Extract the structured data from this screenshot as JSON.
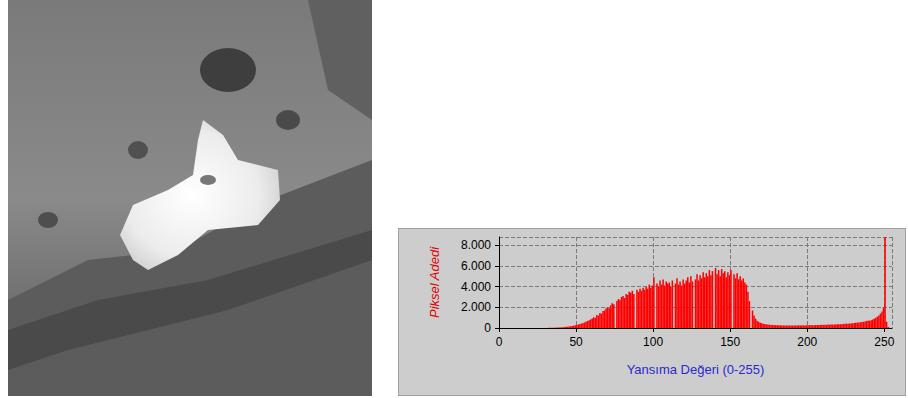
{
  "chart_data": {
    "type": "histogram",
    "xlabel": "Yansıma Değeri (0-255)",
    "ylabel": "Piksel Adedi",
    "color": "#ff0000",
    "bins": [
      0,
      1,
      2,
      3,
      4,
      5,
      6,
      7,
      8,
      9,
      10,
      11,
      12,
      13,
      14,
      15,
      16,
      17,
      18,
      19,
      20,
      21,
      22,
      23,
      24,
      25,
      26,
      27,
      28,
      29,
      30,
      31,
      32,
      33,
      34,
      35,
      36,
      37,
      38,
      39,
      40,
      41,
      42,
      43,
      44,
      45,
      46,
      47,
      48,
      49,
      50,
      51,
      52,
      53,
      54,
      55,
      56,
      57,
      58,
      59,
      60,
      61,
      62,
      63,
      64,
      65,
      66,
      67,
      68,
      69,
      70,
      71,
      72,
      73,
      74,
      75,
      76,
      77,
      78,
      79,
      80,
      81,
      82,
      83,
      84,
      85,
      86,
      87,
      88,
      89,
      90,
      91,
      92,
      93,
      94,
      95,
      96,
      97,
      98,
      99,
      100,
      101,
      102,
      103,
      104,
      105,
      106,
      107,
      108,
      109,
      110,
      111,
      112,
      113,
      114,
      115,
      116,
      117,
      118,
      119,
      120,
      121,
      122,
      123,
      124,
      125,
      126,
      127,
      128,
      129,
      130,
      131,
      132,
      133,
      134,
      135,
      136,
      137,
      138,
      139,
      140,
      141,
      142,
      143,
      144,
      145,
      146,
      147,
      148,
      149,
      150,
      151,
      152,
      153,
      154,
      155,
      156,
      157,
      158,
      159,
      160,
      161,
      162,
      163,
      164,
      165,
      166,
      167,
      168,
      169,
      170,
      171,
      172,
      173,
      174,
      175,
      176,
      177,
      178,
      179,
      180,
      181,
      182,
      183,
      184,
      185,
      186,
      187,
      188,
      189,
      190,
      191,
      192,
      193,
      194,
      195,
      196,
      197,
      198,
      199,
      200,
      201,
      202,
      203,
      204,
      205,
      206,
      207,
      208,
      209,
      210,
      211,
      212,
      213,
      214,
      215,
      216,
      217,
      218,
      219,
      220,
      221,
      222,
      223,
      224,
      225,
      226,
      227,
      228,
      229,
      230,
      231,
      232,
      233,
      234,
      235,
      236,
      237,
      238,
      239,
      240,
      241,
      242,
      243,
      244,
      245,
      246,
      247,
      248,
      249,
      250,
      251,
      252,
      253,
      254,
      255,
      256
    ],
    "values": [
      0,
      0,
      0,
      0,
      0,
      0,
      0,
      0,
      0,
      0,
      0,
      0,
      0,
      0,
      0,
      0,
      0,
      0,
      0,
      0,
      0,
      0,
      0,
      0,
      0,
      0,
      0,
      0,
      5,
      5,
      10,
      10,
      15,
      20,
      20,
      30,
      30,
      40,
      50,
      50,
      70,
      80,
      90,
      110,
      130,
      150,
      170,
      200,
      230,
      260,
      300,
      340,
      380,
      420,
      480,
      540,
      610,
      680,
      750,
      830,
      920,
      1050,
      980,
      1250,
      1200,
      1450,
      1380,
      1650,
      1700,
      1900,
      2000,
      1900,
      2200,
      2400,
      2300,
      0,
      2600,
      2800,
      2700,
      3000,
      3100,
      2900,
      3300,
      3200,
      3500,
      3400,
      3600,
      3300,
      0,
      3700,
      3500,
      3800,
      3600,
      3900,
      3700,
      4000,
      3800,
      4200,
      3900,
      4100,
      4900,
      0,
      4300,
      4000,
      4600,
      4200,
      4700,
      4100,
      4500,
      4300,
      4400,
      4000,
      4600,
      0,
      4300,
      4800,
      4200,
      4500,
      4100,
      4700,
      4300,
      4600,
      4900,
      4400,
      5000,
      4500,
      0,
      4700,
      5200,
      4600,
      5100,
      4800,
      5400,
      4900,
      5300,
      5000,
      5600,
      5100,
      5500,
      0,
      5800,
      5200,
      5600,
      5000,
      5700,
      5300,
      5500,
      4900,
      5400,
      5100,
      5600,
      0,
      5200,
      4800,
      5300,
      4700,
      5000,
      4600,
      4800,
      4400,
      4200,
      3500,
      2600,
      0,
      1700,
      1200,
      900,
      700,
      600,
      500,
      450,
      400,
      380,
      350,
      330,
      320,
      300,
      300,
      280,
      280,
      270,
      260,
      260,
      250,
      250,
      240,
      240,
      250,
      240,
      230,
      240,
      230,
      250,
      240,
      260,
      250,
      240,
      260,
      250,
      270,
      260,
      270,
      280,
      260,
      270,
      290,
      280,
      300,
      290,
      310,
      300,
      320,
      310,
      330,
      320,
      340,
      330,
      350,
      340,
      360,
      370,
      360,
      380,
      390,
      400,
      420,
      410,
      440,
      430,
      460,
      480,
      500,
      520,
      540,
      560,
      580,
      600,
      640,
      680,
      720,
      700,
      760,
      820,
      900,
      1000,
      1100,
      1200,
      1400,
      1600,
      2000,
      8800,
      600,
      100,
      20,
      5,
      0
    ],
    "xlim": [
      0,
      255
    ],
    "xticks": [
      0,
      50,
      100,
      150,
      200,
      250
    ],
    "ylim": [
      0,
      8800
    ],
    "yticks": [
      0,
      {
        "value": 2000,
        "label": "2.000"
      },
      {
        "value": 4000,
        "label": "4.000"
      },
      {
        "value": 6000,
        "label": "6.000"
      },
      {
        "value": 8000,
        "label": "8.000"
      }
    ],
    "grid": true
  }
}
